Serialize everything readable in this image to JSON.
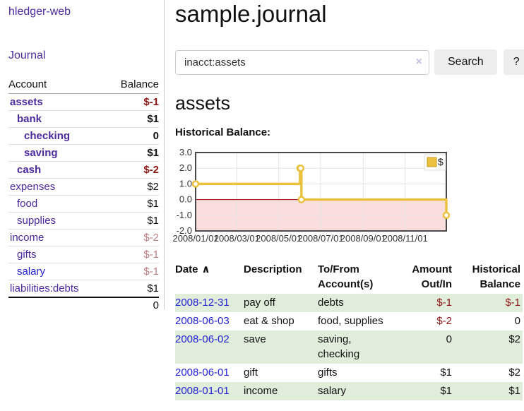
{
  "app": {
    "brand": "hledger-web"
  },
  "sidebar": {
    "nav_journal": "Journal",
    "accounts": {
      "col_account": "Account",
      "col_balance": "Balance",
      "rows": [
        {
          "name": "assets",
          "balance": "$-1",
          "indent": 0,
          "bold": true,
          "neg": "strong",
          "link_style": "purple"
        },
        {
          "name": "bank",
          "balance": "$1",
          "indent": 1,
          "bold": true,
          "neg": null,
          "link_style": "purple"
        },
        {
          "name": "checking",
          "balance": "0",
          "indent": 2,
          "bold": true,
          "neg": null,
          "link_style": "purple"
        },
        {
          "name": "saving",
          "balance": "$1",
          "indent": 2,
          "bold": true,
          "neg": null,
          "link_style": "purple"
        },
        {
          "name": "cash",
          "balance": "$-2",
          "indent": 1,
          "bold": true,
          "neg": "strong",
          "link_style": "purple"
        },
        {
          "name": "expenses",
          "balance": "$2",
          "indent": 0,
          "bold": false,
          "neg": null,
          "link_style": "purple"
        },
        {
          "name": "food",
          "balance": "$1",
          "indent": 1,
          "bold": false,
          "neg": null,
          "link_style": "purple"
        },
        {
          "name": "supplies",
          "balance": "$1",
          "indent": 1,
          "bold": false,
          "neg": null,
          "link_style": "purple"
        },
        {
          "name": "income",
          "balance": "$-2",
          "indent": 0,
          "bold": false,
          "neg": "soft",
          "link_style": "purple"
        },
        {
          "name": "gifts",
          "balance": "$-1",
          "indent": 1,
          "bold": false,
          "neg": "soft",
          "link_style": "purple"
        },
        {
          "name": "salary",
          "balance": "$-1",
          "indent": 1,
          "bold": false,
          "neg": "soft",
          "link_style": "blue"
        },
        {
          "name": "liabilities:debts",
          "balance": "$1",
          "indent": 0,
          "bold": false,
          "neg": null,
          "link_style": "purple"
        }
      ],
      "total": "0"
    }
  },
  "main": {
    "title": "sample.journal",
    "search": {
      "value": "inacct:assets",
      "clear": "×",
      "submit": "Search",
      "help": "?"
    },
    "account_heading": "assets",
    "section_label": "Historical Balance:"
  },
  "chart_data": {
    "type": "line",
    "title": "Historical Balance",
    "legend_position": "top-right",
    "grid": true,
    "x_range": [
      "2008-01-01",
      "2008-12-31"
    ],
    "y_range": [
      -2,
      3
    ],
    "y_ticks": [
      3.0,
      2.0,
      1.0,
      0.0,
      -1.0,
      -2.0
    ],
    "x_ticks": [
      {
        "pos": "2008-01-01",
        "label": "2008/01/01"
      },
      {
        "pos": "2008-03-01",
        "label": "2008/03/01"
      },
      {
        "pos": "2008-05-01",
        "label": "2008/05/01"
      },
      {
        "pos": "2008-07-01",
        "label": "2008/07/01"
      },
      {
        "pos": "2008-09-01",
        "label": "2008/09/01"
      },
      {
        "pos": "2008-11-01",
        "label": "2008/11/01"
      }
    ],
    "series": [
      {
        "name": "$",
        "color": "#EBC240",
        "step": true,
        "points": [
          {
            "date": "2008-01-01",
            "value": 1
          },
          {
            "date": "2008-06-01",
            "value": 2
          },
          {
            "date": "2008-06-02",
            "value": 2
          },
          {
            "date": "2008-06-03",
            "value": 0
          },
          {
            "date": "2008-12-31",
            "value": -1
          }
        ]
      }
    ],
    "negative_fill": "#fadddd",
    "zero_line_color": "#a00000"
  },
  "register": {
    "headers": {
      "date": "Date",
      "sort": "∧",
      "description": "Description",
      "accounts": "To/From\nAccount(s)",
      "amount": "Amount\nOut/In",
      "balance": "Historical\nBalance"
    },
    "rows": [
      {
        "date": "2008-12-31",
        "description": "pay off",
        "accounts": "debts",
        "amount": "$-1",
        "balance": "$-1"
      },
      {
        "date": "2008-06-03",
        "description": "eat & shop",
        "accounts": "food, supplies",
        "amount": "$-2",
        "balance": "0"
      },
      {
        "date": "2008-06-02",
        "description": "save",
        "accounts": "saving,\nchecking",
        "amount": "0",
        "balance": "$2"
      },
      {
        "date": "2008-06-01",
        "description": "gift",
        "accounts": "gifts",
        "amount": "$1",
        "balance": "$2"
      },
      {
        "date": "2008-01-01",
        "description": "income",
        "accounts": "salary",
        "amount": "$1",
        "balance": "$1"
      }
    ]
  },
  "colors": {
    "link_purple": "#4a2a9d",
    "link_blue": "#2323d4",
    "negative_strong": "#8e1414",
    "negative_soft": "#b97f7f",
    "row_green": "#e0edda",
    "button_bg": "#ededed",
    "chart_line": "#EBC240",
    "chart_negative_region": "#fadddd",
    "chart_zero_line": "#a00000"
  }
}
